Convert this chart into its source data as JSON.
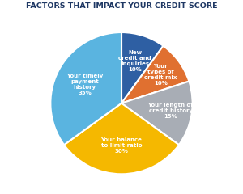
{
  "title": "FACTORS THAT IMPACT YOUR CREDIT SCORE",
  "title_color": "#1f3864",
  "title_fontsize": 6.8,
  "slices": [
    {
      "label": "New\ncredit and\ninquiries\n10%",
      "value": 10,
      "color": "#2e5fa3",
      "text_color": "white",
      "label_r": 0.62
    },
    {
      "label": "Your\ntypes of\ncredit mix\n10%",
      "value": 10,
      "color": "#e07030",
      "text_color": "white",
      "label_r": 0.68
    },
    {
      "label": "Your length of\ncredit history\n15%",
      "value": 15,
      "color": "#a8adb5",
      "text_color": "white",
      "label_r": 0.7
    },
    {
      "label": "Your balance\nto limit ratio\n30%",
      "value": 30,
      "color": "#f5b800",
      "text_color": "white",
      "label_r": 0.6
    },
    {
      "label": "Your timely\npayment\nhistory\n35%",
      "value": 35,
      "color": "#5ab4e0",
      "text_color": "white",
      "label_r": 0.58
    }
  ],
  "start_angle": 90,
  "background_color": "#ffffff",
  "edge_color": "white",
  "edge_width": 1.5
}
